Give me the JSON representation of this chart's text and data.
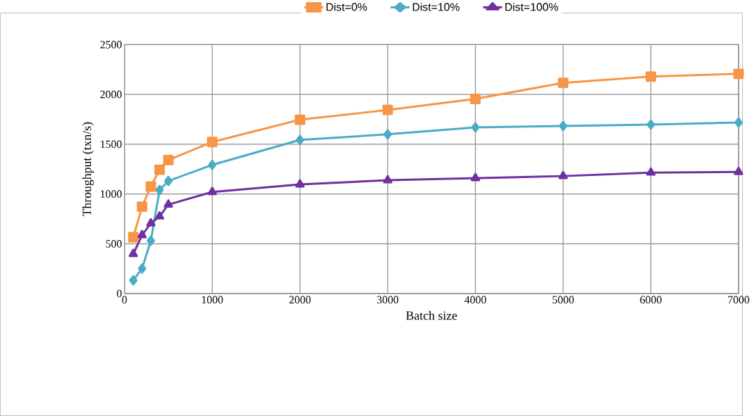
{
  "chart_data": {
    "type": "line",
    "xlabel": "Batch size",
    "ylabel": "Throughput (txn/s)",
    "x": [
      100,
      200,
      300,
      400,
      500,
      1000,
      2000,
      3000,
      4000,
      5000,
      6000,
      7000
    ],
    "series": [
      {
        "name": "Dist=0%",
        "color": "#f79646",
        "marker": "square",
        "values": [
          566,
          873,
          1075,
          1243,
          1341,
          1522,
          1746,
          1844,
          1955,
          2116,
          2179,
          2207
        ]
      },
      {
        "name": "Dist=10%",
        "color": "#4bacc6",
        "marker": "diamond",
        "values": [
          133,
          251,
          531,
          1040,
          1131,
          1292,
          1543,
          1599,
          1669,
          1683,
          1697,
          1718
        ]
      },
      {
        "name": "Dist=100%",
        "color": "#7030a0",
        "marker": "triangle",
        "values": [
          398,
          587,
          705,
          775,
          894,
          1020,
          1096,
          1138,
          1159,
          1180,
          1215,
          1222
        ]
      }
    ],
    "xlim": [
      0,
      7000
    ],
    "xticks": [
      0,
      1000,
      2000,
      3000,
      4000,
      5000,
      6000,
      7000
    ],
    "ylim": [
      0,
      2500
    ],
    "yticks": [
      0,
      500,
      1000,
      1500,
      2000,
      2500
    ],
    "grid": true,
    "legend": "top",
    "line_style": "solid"
  }
}
